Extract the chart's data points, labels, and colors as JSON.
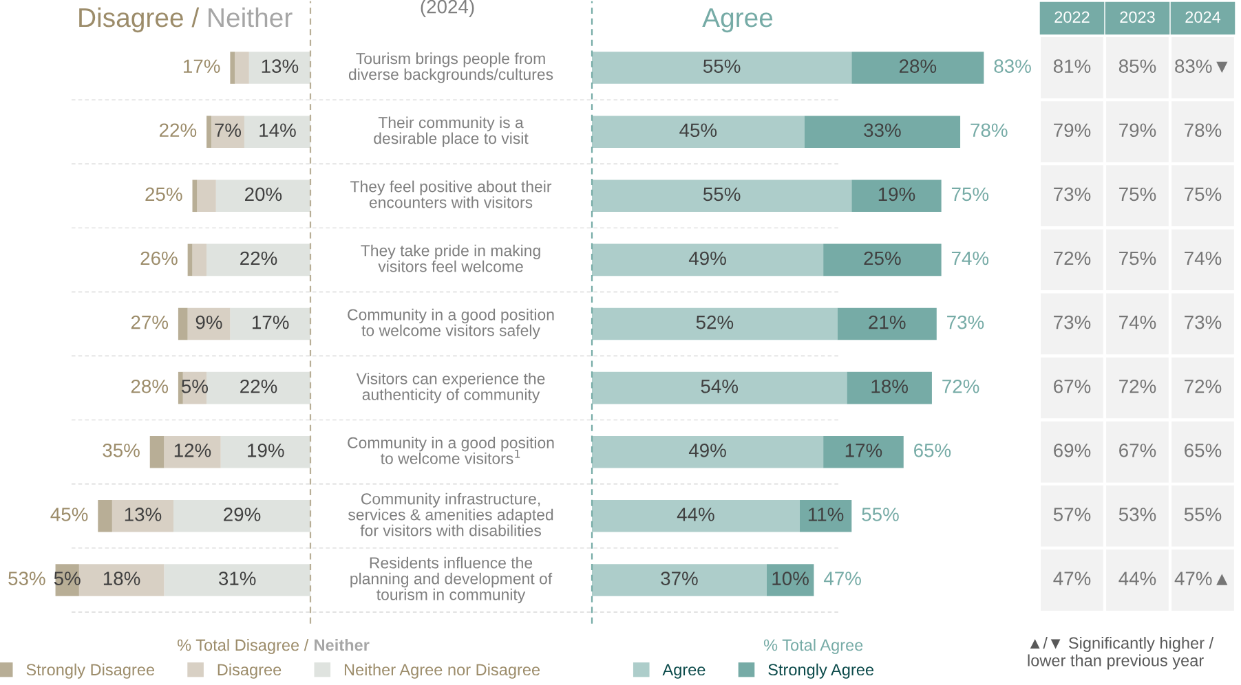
{
  "chart_data": [
    {
      "type": "bar",
      "orientation": "horizontal",
      "stacked": true,
      "title": "Disagree / Neither",
      "xlabel": "% Total Disagree / Neither",
      "annotations": [
        "(2024)"
      ],
      "categories": [
        "Tourism brings people from\ndiverse backgrounds/cultures",
        "Their community is a\ndesirable place to visit",
        "They feel positive about their\nencounters with visitors",
        "They take pride in making\nvisitors feel welcome",
        "Community in a good position\nto welcome visitors safely",
        "Visitors can experience the\nauthenticity of community",
        "Community in a good position\nto welcome visitors$^{1}$",
        "Community infrastructure,\nservices & amenities adapted\nfor visitors with disabilities",
        "Residents influence the\nplanning and development of\ntourism in community"
      ],
      "tick_labels": "y",
      "grid": "y",
      "legend": "bottom",
      "ref_lines": [
        {
          "axis": "x",
          "value": 0,
          "color": "#b8ae96",
          "line_style": "dashed"
        }
      ],
      "series": [
        {
          "name": "Neither Agree nor Disagree",
          "color": "#dfe3df",
          "values": [
            13,
            14,
            20,
            22,
            17,
            22,
            19,
            29,
            31
          ],
          "value_labels": [
            "13%",
            "14%",
            "20%",
            "22%",
            "17%",
            "22%",
            "19%",
            "29%",
            "31%"
          ]
        },
        {
          "name": "Disagree",
          "color": "#d8d0c4",
          "values": [
            3,
            7,
            4,
            3,
            9,
            5,
            12,
            13,
            18
          ],
          "value_labels": [
            null,
            "7%",
            null,
            null,
            "9%",
            "5%",
            "12%",
            "13%",
            "18%"
          ]
        },
        {
          "name": "Strongly Disagree",
          "color": "#b8ae96",
          "values": [
            1,
            1,
            1,
            1,
            2,
            1,
            3,
            3,
            5
          ],
          "value_labels": [
            null,
            null,
            null,
            null,
            null,
            null,
            null,
            null,
            "5%"
          ]
        }
      ],
      "totals": [
        "17%",
        "22%",
        "25%",
        "26%",
        "27%",
        "28%",
        "35%",
        "45%",
        "53%"
      ]
    },
    {
      "type": "bar",
      "orientation": "horizontal",
      "stacked": true,
      "title": "Agree",
      "xlabel": "% Total Agree",
      "categories": [
        null,
        null,
        null,
        null,
        null,
        null,
        null,
        null,
        null
      ],
      "tick_labels": false,
      "legend": "bottom",
      "ref_lines": [
        {
          "axis": "x",
          "value": 0,
          "color": "#76aba6",
          "line_style": "dashed"
        }
      ],
      "series": [
        {
          "name": "Agree",
          "color": "#adcdca",
          "values": [
            55,
            45,
            55,
            49,
            52,
            54,
            49,
            44,
            37
          ],
          "value_labels": [
            "55%",
            "45%",
            "55%",
            "49%",
            "52%",
            "54%",
            "49%",
            "44%",
            "37%"
          ]
        },
        {
          "name": "Strongly Agree",
          "color": "#76aba6",
          "values": [
            28,
            33,
            19,
            25,
            21,
            18,
            17,
            11,
            10
          ],
          "value_labels": [
            "28%",
            "33%",
            "19%",
            "25%",
            "21%",
            "18%",
            "17%",
            "11%",
            "10%"
          ]
        }
      ],
      "totals": [
        "83%",
        "78%",
        "75%",
        "74%",
        "73%",
        "72%",
        "65%",
        "55%",
        "47%"
      ]
    },
    {
      "type": "other",
      "categories": [
        "2022",
        "2023",
        "2024"
      ],
      "color": "#f2f2f2",
      "cell_labels": [
        [
          "81%",
          "85%",
          "83%▼"
        ],
        [
          "79%",
          "79%",
          "78%"
        ],
        [
          "73%",
          "75%",
          "75%"
        ],
        [
          "72%",
          "75%",
          "74%"
        ],
        [
          "73%",
          "74%",
          "73%"
        ],
        [
          "67%",
          "72%",
          "72%"
        ],
        [
          "69%",
          "67%",
          "65%"
        ],
        [
          "57%",
          "53%",
          "55%"
        ],
        [
          "47%",
          "44%",
          "47%▲"
        ]
      ],
      "annotations": [
        "▲/▼ Significantly higher / lower than previous year"
      ]
    }
  ]
}
